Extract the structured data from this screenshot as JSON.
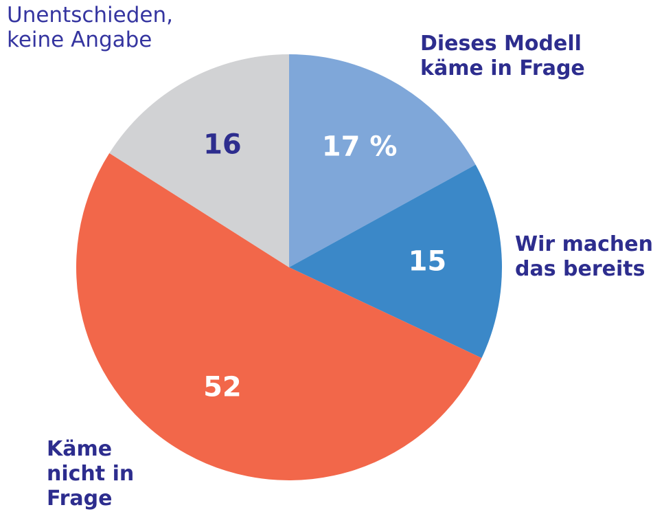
{
  "chart_data": {
    "type": "pie",
    "categories": [
      "Dieses Modell\nkäme in Frage",
      "Wir machen\ndas bereits",
      "Käme\nnicht in\nFrage",
      "Unentschieden,\nkeine Angabe"
    ],
    "values": [
      17,
      15,
      52,
      16
    ],
    "value_labels": [
      "17 %",
      "15",
      "52",
      "16"
    ],
    "colors": [
      "#7fa7d9",
      "#3b88c8",
      "#f2674a",
      "#d1d2d4"
    ]
  }
}
